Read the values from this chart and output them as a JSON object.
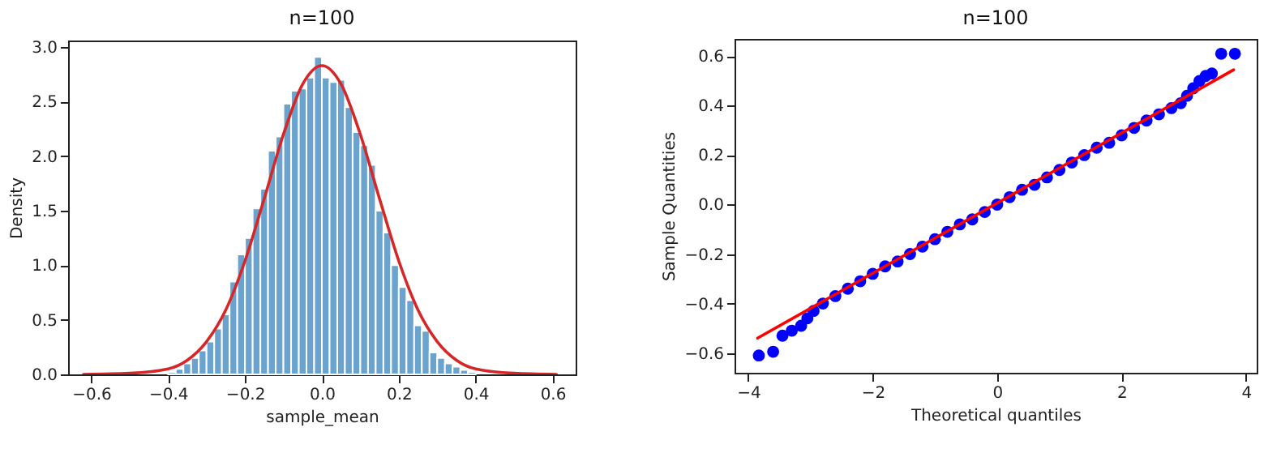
{
  "chart_data": [
    {
      "type": "histogram",
      "title": "n=100",
      "xlabel": "sample_mean",
      "ylabel": "Density",
      "color": "#6ba3cf",
      "grid": false,
      "xlim": [
        -0.66,
        0.66
      ],
      "ylim": [
        0,
        3.06
      ],
      "xticks": [
        {
          "value": -0.6,
          "label": "−0.6"
        },
        {
          "value": -0.4,
          "label": "−0.4"
        },
        {
          "value": -0.2,
          "label": "−0.2"
        },
        {
          "value": 0,
          "label": "0.0"
        },
        {
          "value": 0.2,
          "label": "0.2"
        },
        {
          "value": 0.4,
          "label": "0.4"
        },
        {
          "value": 0.6,
          "label": "0.6"
        }
      ],
      "yticks": [
        {
          "value": 0,
          "label": "0.0"
        },
        0.5,
        {
          "value": 1,
          "label": "1.0"
        },
        1.5,
        {
          "value": 2,
          "label": "2.0"
        },
        2.5,
        {
          "value": 3,
          "label": "3.0"
        }
      ],
      "bins": [
        -0.4,
        -0.38,
        -0.36,
        -0.34,
        -0.32,
        -0.3,
        -0.28,
        -0.26,
        -0.24,
        -0.22,
        -0.2,
        -0.18,
        -0.16,
        -0.14,
        -0.12,
        -0.1,
        -0.08,
        -0.06,
        -0.04,
        -0.02,
        0,
        0.02,
        0.04,
        0.06,
        0.08,
        0.1,
        0.12,
        0.14,
        0.16,
        0.18,
        0.2,
        0.22,
        0.24,
        0.26,
        0.28,
        0.3,
        0.32,
        0.34,
        0.36,
        0.38,
        0.4
      ],
      "values": [
        0.02,
        0.05,
        0.1,
        0.15,
        0.22,
        0.3,
        0.42,
        0.55,
        0.85,
        1.1,
        1.25,
        1.52,
        1.7,
        2.05,
        2.18,
        2.48,
        2.6,
        2.62,
        2.72,
        2.91,
        2.72,
        2.68,
        2.7,
        2.45,
        2.22,
        2.1,
        1.92,
        1.5,
        1.3,
        1.0,
        0.8,
        0.68,
        0.45,
        0.4,
        0.2,
        0.15,
        0.1,
        0.07,
        0.04,
        0.02
      ],
      "series": [
        {
          "type": "line",
          "color": "#d62728",
          "x": [
            -0.62,
            -0.5,
            -0.4,
            -0.35,
            -0.3,
            -0.25,
            -0.2,
            -0.15,
            -0.1,
            -0.05,
            0,
            0.05,
            0.1,
            0.15,
            0.2,
            0.25,
            0.3,
            0.35,
            0.4,
            0.5,
            0.61
          ],
          "values": [
            0,
            0.01,
            0.05,
            0.13,
            0.3,
            0.59,
            1.04,
            1.61,
            2.2,
            2.66,
            2.83,
            2.66,
            2.2,
            1.61,
            1.04,
            0.59,
            0.3,
            0.13,
            0.05,
            0.01,
            0
          ]
        }
      ]
    },
    {
      "type": "scatter",
      "title": "n=100",
      "xlabel": "Theoretical quantiles",
      "ylabel": "Sample Quantities",
      "grid": false,
      "xlim": [
        -4.22,
        4.17
      ],
      "ylim": [
        -0.68,
        0.67
      ],
      "xticks": [
        {
          "value": -4,
          "label": "−4"
        },
        {
          "value": -2,
          "label": "−2"
        },
        0,
        2,
        4
      ],
      "yticks": [
        {
          "value": -0.6,
          "label": "−0.6"
        },
        {
          "value": -0.4,
          "label": "−0.4"
        },
        {
          "value": -0.2,
          "label": "−0.2"
        },
        {
          "value": 0,
          "label": "0.0"
        },
        0.2,
        0.4,
        0.6
      ],
      "series": [
        {
          "type": "scatter",
          "marker": "circle",
          "color": "#0000ff",
          "x": [
            -3.83,
            -3.6,
            -3.45,
            -3.3,
            -3.15,
            -3.05,
            -2.95,
            -2.8,
            -2.6,
            -2.4,
            -2.2,
            -2,
            -1.8,
            -1.6,
            -1.4,
            -1.2,
            -1,
            -0.8,
            -0.6,
            -0.4,
            -0.2,
            0,
            0.2,
            0.4,
            0.6,
            0.8,
            1,
            1.2,
            1.4,
            1.6,
            1.8,
            2,
            2.2,
            2.4,
            2.6,
            2.8,
            2.95,
            3.05,
            3.15,
            3.25,
            3.35,
            3.45,
            3.6,
            3.82
          ],
          "values": [
            -0.61,
            -0.595,
            -0.53,
            -0.51,
            -0.49,
            -0.46,
            -0.43,
            -0.4,
            -0.37,
            -0.34,
            -0.31,
            -0.28,
            -0.25,
            -0.23,
            -0.2,
            -0.17,
            -0.14,
            -0.11,
            -0.08,
            -0.06,
            -0.03,
            0,
            0.03,
            0.06,
            0.08,
            0.11,
            0.14,
            0.17,
            0.2,
            0.23,
            0.25,
            0.28,
            0.31,
            0.34,
            0.365,
            0.39,
            0.41,
            0.44,
            0.47,
            0.5,
            0.52,
            0.53,
            0.61,
            0.61
          ]
        },
        {
          "type": "line",
          "color": "#ff0000",
          "x": [
            -3.85,
            3.8
          ],
          "values": [
            -0.54,
            0.545
          ]
        }
      ]
    }
  ]
}
